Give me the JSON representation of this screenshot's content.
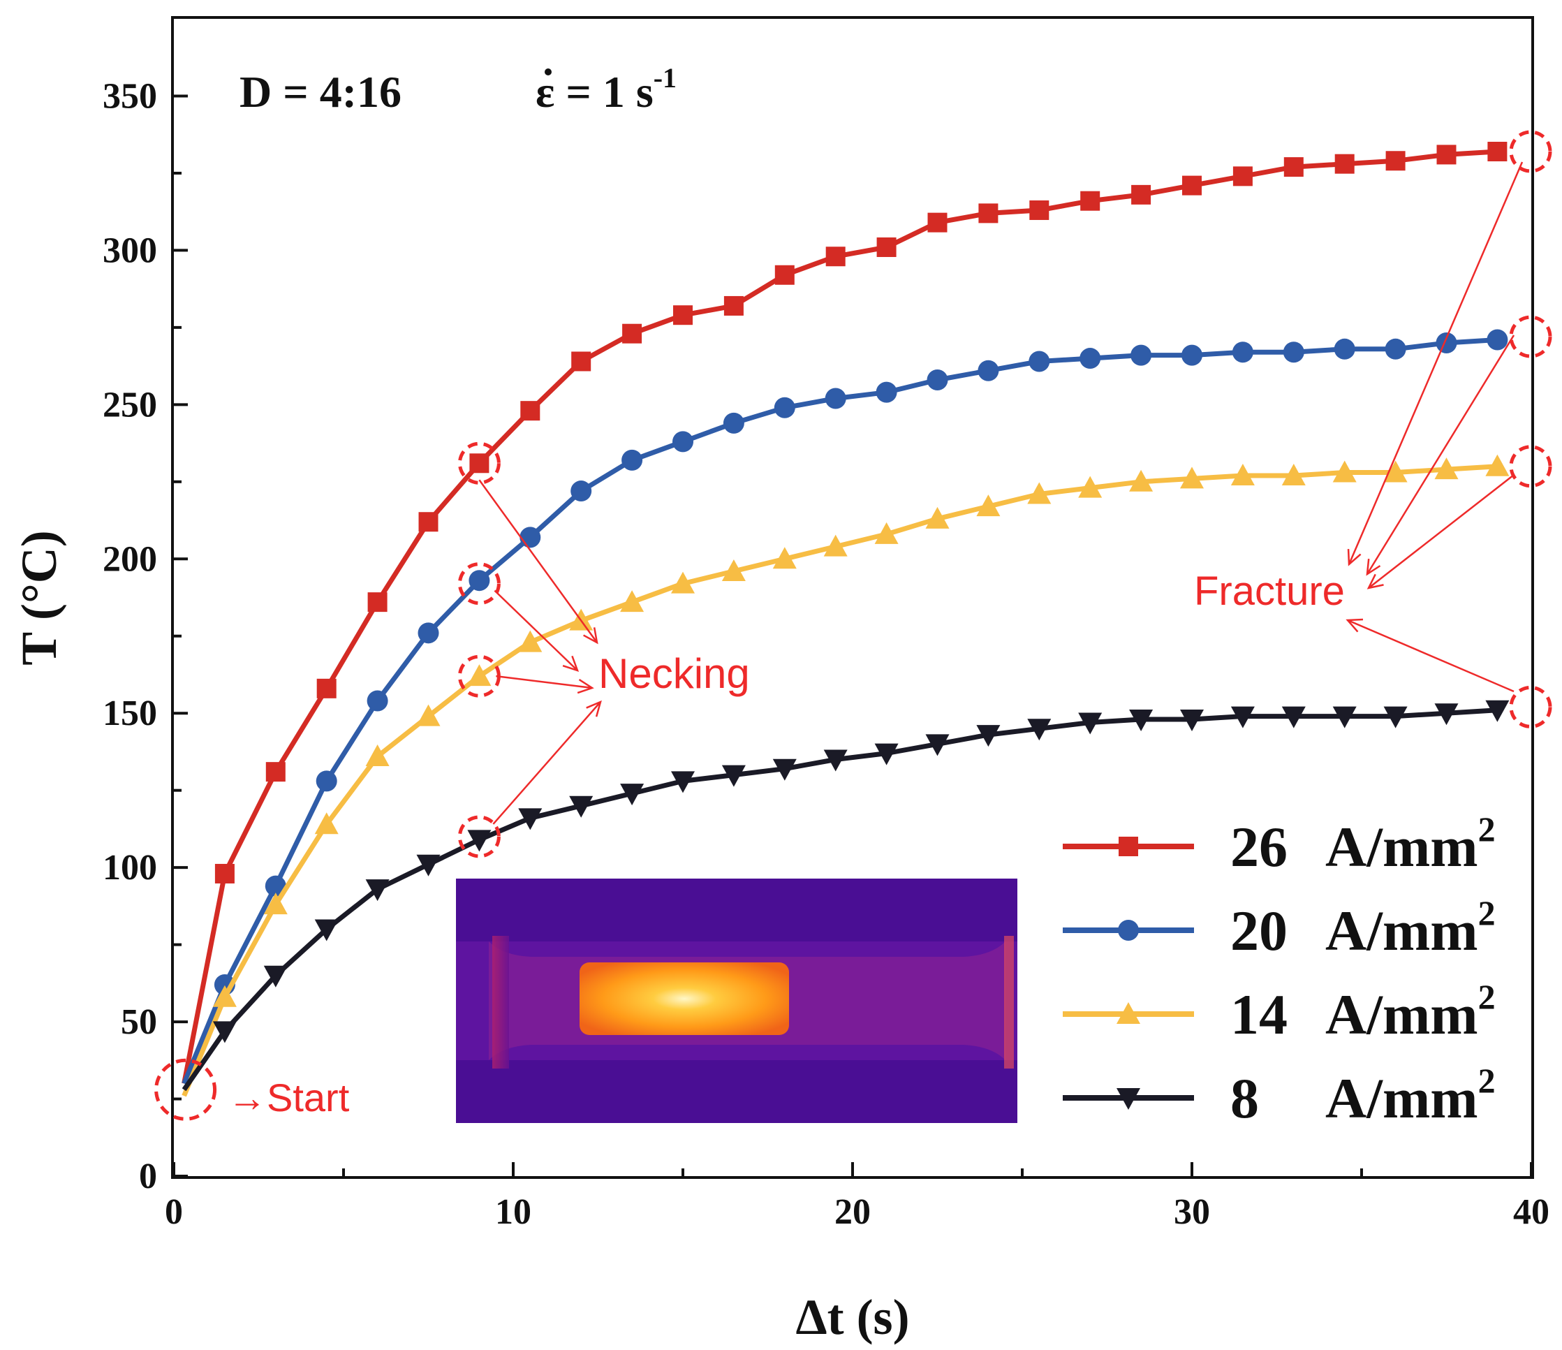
{
  "chart_data": {
    "type": "line",
    "title_left": "D = 4:16",
    "title_right_symbol": "ε",
    "title_right_rest": " = 1 s",
    "title_right_exp": "-1",
    "xlabel": "Δt  (s)",
    "ylabel": "T  (°C)",
    "xlim": [
      0,
      40
    ],
    "ylim": [
      0,
      375
    ],
    "xticks": [
      0,
      10,
      20,
      30,
      40
    ],
    "yticks": [
      0,
      50,
      100,
      150,
      200,
      250,
      300,
      350
    ],
    "grid": false,
    "legend_position": "bottom-right",
    "series": [
      {
        "name": "26",
        "unit": "A/mm",
        "unit_exp": "2",
        "color": "#d42b24",
        "marker": "square",
        "x": [
          0.3,
          1.5,
          3.0,
          4.5,
          6.0,
          7.5,
          9.0,
          10.5,
          12.0,
          13.5,
          15.0,
          16.5,
          18.0,
          19.5,
          21.0,
          22.5,
          24.0,
          25.5,
          27.0,
          28.5,
          30.0,
          31.5,
          33.0,
          34.5,
          36.0,
          37.5,
          39.0
        ],
        "values": [
          30,
          98,
          131,
          158,
          186,
          212,
          231,
          248,
          264,
          273,
          279,
          282,
          292,
          298,
          301,
          309,
          312,
          313,
          316,
          318,
          321,
          324,
          327,
          328,
          329,
          331,
          332
        ]
      },
      {
        "name": "20",
        "unit": "A/mm",
        "unit_exp": "2",
        "color": "#2f5ca8",
        "marker": "circle",
        "x": [
          0.3,
          1.5,
          3.0,
          4.5,
          6.0,
          7.5,
          9.0,
          10.5,
          12.0,
          13.5,
          15.0,
          16.5,
          18.0,
          19.5,
          21.0,
          22.5,
          24.0,
          25.5,
          27.0,
          28.5,
          30.0,
          31.5,
          33.0,
          34.5,
          36.0,
          37.5,
          39.0
        ],
        "values": [
          30,
          62,
          94,
          128,
          154,
          176,
          193,
          207,
          222,
          232,
          238,
          244,
          249,
          252,
          254,
          258,
          261,
          264,
          265,
          266,
          266,
          267,
          267,
          268,
          268,
          270,
          271
        ]
      },
      {
        "name": "14",
        "unit": "A/mm",
        "unit_exp": "2",
        "color": "#f7bd44",
        "marker": "triangle-up",
        "x": [
          0.3,
          1.5,
          3.0,
          4.5,
          6.0,
          7.5,
          9.0,
          10.5,
          12.0,
          13.5,
          15.0,
          16.5,
          18.0,
          19.5,
          21.0,
          22.5,
          24.0,
          25.5,
          27.0,
          28.5,
          30.0,
          31.5,
          33.0,
          34.5,
          36.0,
          37.5,
          39.0
        ],
        "values": [
          26,
          58,
          88,
          114,
          136,
          149,
          162,
          173,
          180,
          186,
          192,
          196,
          200,
          204,
          208,
          213,
          217,
          221,
          223,
          225,
          226,
          227,
          227,
          228,
          228,
          229,
          230
        ]
      },
      {
        "name": "8",
        "unit": "A/mm",
        "unit_exp": "2",
        "color": "#1a1a26",
        "marker": "triangle-down",
        "x": [
          0.3,
          1.5,
          3.0,
          4.5,
          6.0,
          7.5,
          9.0,
          10.5,
          12.0,
          13.5,
          15.0,
          16.5,
          18.0,
          19.5,
          21.0,
          22.5,
          24.0,
          25.5,
          27.0,
          28.5,
          30.0,
          31.5,
          33.0,
          34.5,
          36.0,
          37.5,
          39.0
        ],
        "values": [
          28,
          47,
          65,
          80,
          93,
          101,
          109,
          116,
          120,
          124,
          128,
          130,
          132,
          135,
          137,
          140,
          143,
          145,
          147,
          148,
          148,
          149,
          149,
          149,
          149,
          150,
          151
        ]
      }
    ],
    "annotations": {
      "start": {
        "label": "→Start",
        "x": 0.3,
        "y": 28
      },
      "necking": {
        "label": "Necking",
        "points": [
          [
            9,
            231
          ],
          [
            9,
            192
          ],
          [
            9,
            162
          ],
          [
            9,
            110
          ]
        ]
      },
      "fracture": {
        "label": "Fracture",
        "points": [
          [
            40,
            332
          ],
          [
            40,
            272
          ],
          [
            40,
            230
          ],
          [
            40,
            152
          ]
        ]
      }
    },
    "inset": "infrared thermal image of specimen"
  }
}
